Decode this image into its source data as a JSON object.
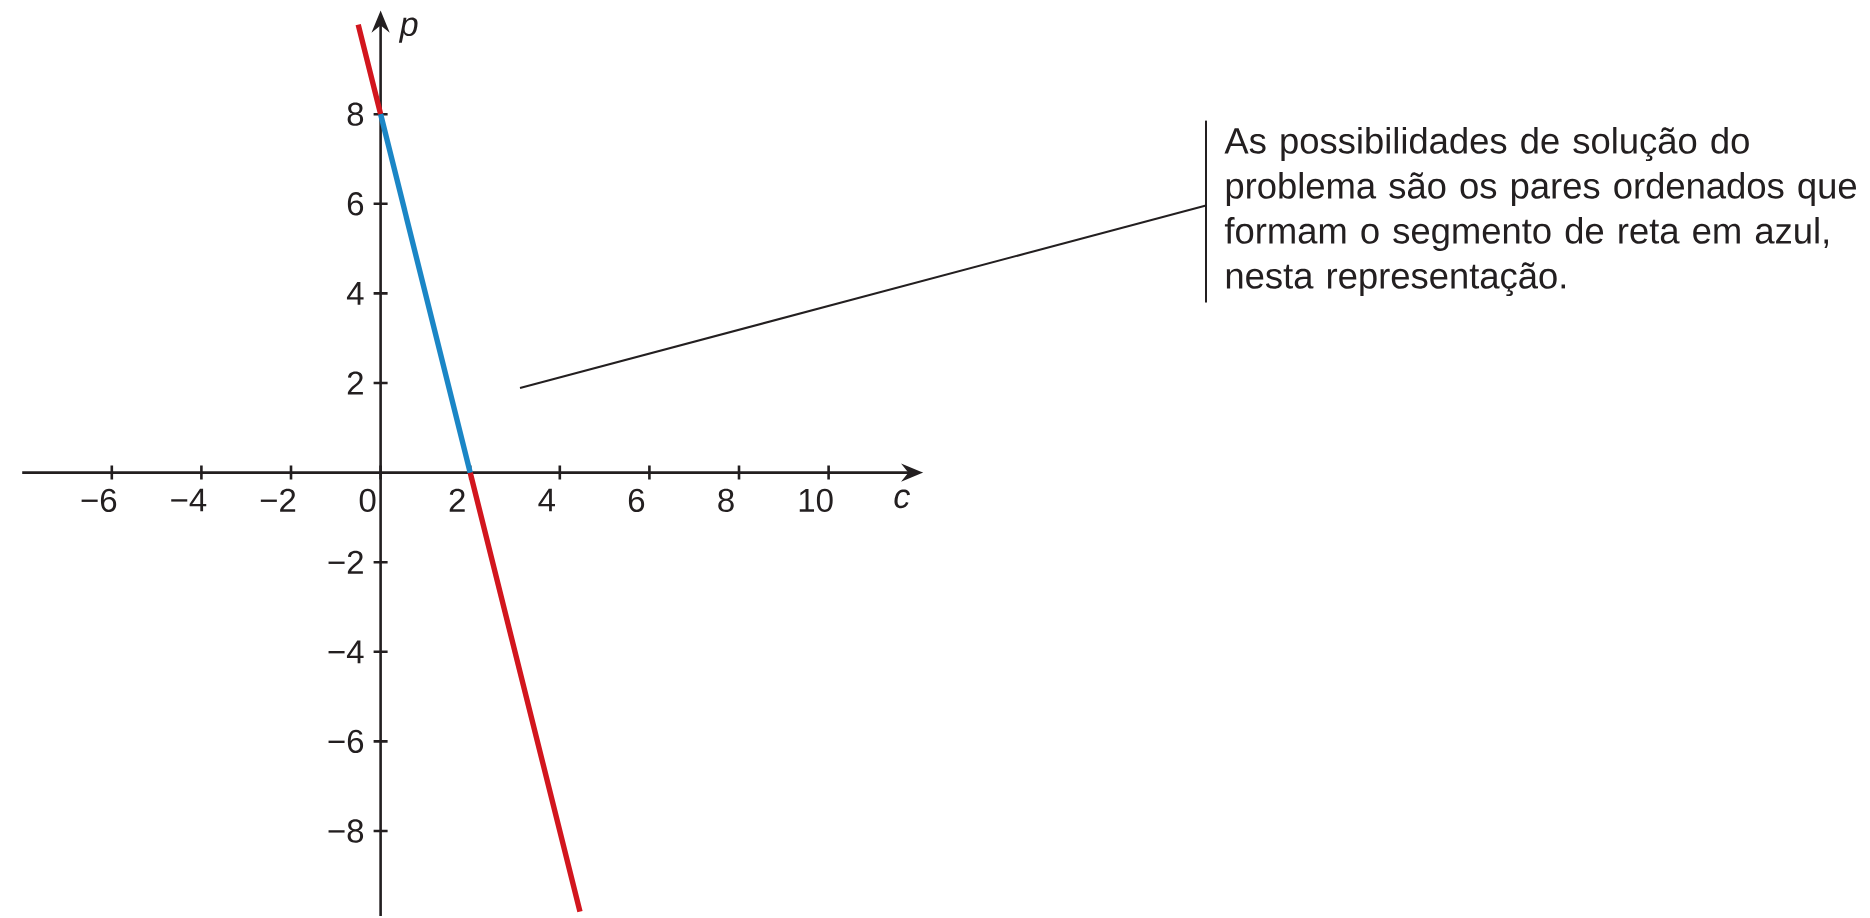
{
  "chart_data": {
    "type": "line",
    "xlabel": "c",
    "ylabel": "p",
    "series": [
      {
        "color": "#d2161e",
        "x": [
          -0.5,
          0,
          1,
          2,
          4.45
        ],
        "values": [
          10,
          8,
          null,
          0,
          -9.8
        ]
      },
      {
        "color": "#1b86c6",
        "x": [
          0,
          2
        ],
        "values": [
          8,
          0
        ]
      }
    ],
    "xlim": [
      -8,
      11.8
    ],
    "ylim": [
      -9.9,
      10
    ],
    "xticks": [
      {
        "value": -6,
        "label": "−6"
      },
      {
        "value": -4,
        "label": "−4"
      },
      {
        "value": -2,
        "label": "−2"
      },
      0,
      2,
      4,
      6,
      8,
      10
    ],
    "yticks": [
      {
        "value": -8,
        "label": "−8"
      },
      {
        "value": -6,
        "label": "−6"
      },
      {
        "value": -4,
        "label": "−4"
      },
      {
        "value": -2,
        "label": "−2"
      },
      2,
      4,
      6,
      8
    ],
    "annotations": [
      "As possibilidades de solução do problema são os pares ordenados que formam o segmento de reta em azul, nesta representação."
    ]
  }
}
